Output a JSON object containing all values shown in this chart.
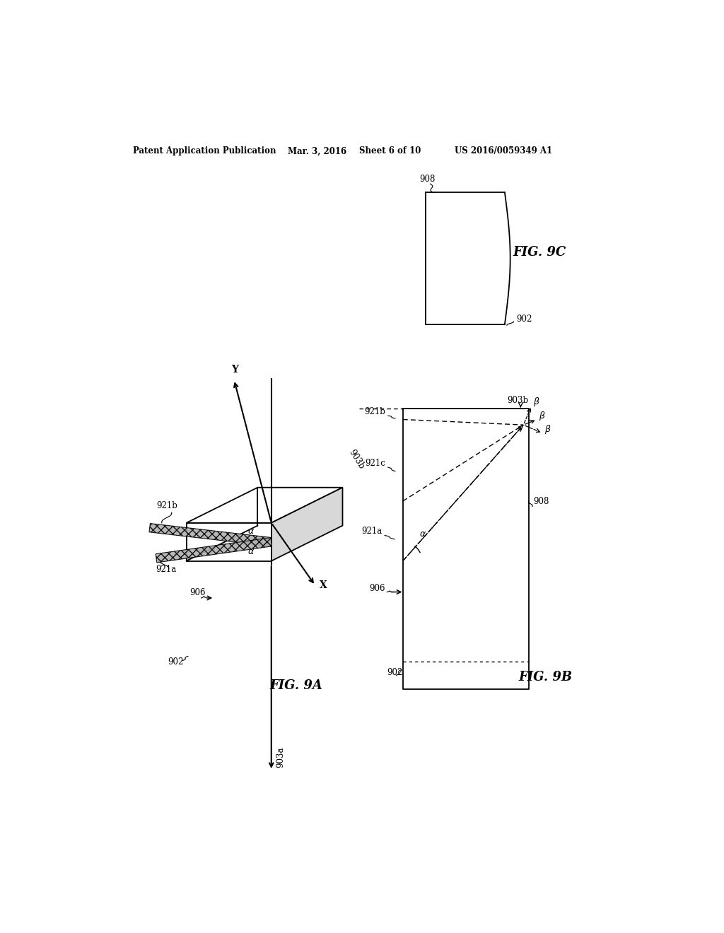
{
  "bg_color": "#ffffff",
  "header_text": "Patent Application Publication",
  "header_date": "Mar. 3, 2016",
  "header_sheet": "Sheet 6 of 10",
  "header_patent": "US 2016/0059349 A1",
  "fig9a_label": "FIG. 9A",
  "fig9b_label": "FIG. 9B",
  "fig9c_label": "FIG. 9C"
}
